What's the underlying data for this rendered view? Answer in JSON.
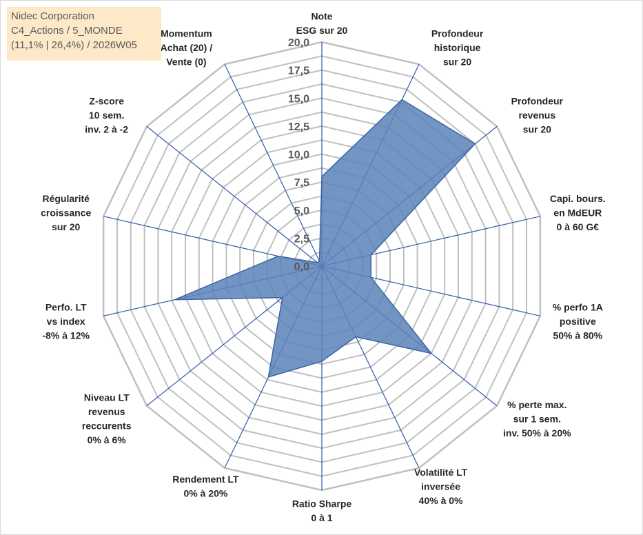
{
  "info_box": {
    "line1": "Nidec Corporation",
    "line2": "C4_Actions / 5_MONDE",
    "line3": "(11,1% | 26,4%) / 2026W05"
  },
  "colors": {
    "grid": "#bfbfbf",
    "spokes": "#2e5aac",
    "fill": "#5b82b8",
    "stroke": "#3d64a3"
  },
  "chart_data": {
    "type": "radar",
    "rmax": 20,
    "rmin": 0,
    "ticks": [
      "0,0",
      "2,5",
      "5,0",
      "7,5",
      "10,0",
      "12,5",
      "15,0",
      "17,5",
      "20,0"
    ],
    "grid": true,
    "axes": [
      [
        "Note",
        "ESG sur 20"
      ],
      [
        "Profondeur",
        "historique",
        "sur 20"
      ],
      [
        "Profondeur",
        "revenus",
        "sur 20"
      ],
      [
        "Capi. bours.",
        "en MdEUR",
        "0 à 60 G€"
      ],
      [
        "% perfo 1A",
        "positive",
        "50% à 80%"
      ],
      [
        "% perte max.",
        "sur 1 sem.",
        "inv. 50% à 20%"
      ],
      [
        "Volatilité LT",
        "inversée",
        "40% à 0%"
      ],
      [
        "Ratio Sharpe",
        "0 à 1"
      ],
      [
        "Rendement LT",
        "0% à 20%"
      ],
      [
        "Niveau LT",
        "revenus",
        "reccurents",
        "0% à 6%"
      ],
      [
        "Perfo. LT",
        "vs index",
        "-8% à 12%"
      ],
      [
        "Régularité",
        "croissance",
        "sur 20"
      ],
      [
        "Z-score",
        "10 sem.",
        "inv. 2 à -2"
      ],
      [
        "Momentum",
        "Achat (20) /",
        "Vente (0)"
      ]
    ],
    "values": [
      8.0,
      16.5,
      17.5,
      4.5,
      4.5,
      12.5,
      7.0,
      8.5,
      11.0,
      4.5,
      13.5,
      4.0,
      0.5,
      0.5
    ]
  }
}
